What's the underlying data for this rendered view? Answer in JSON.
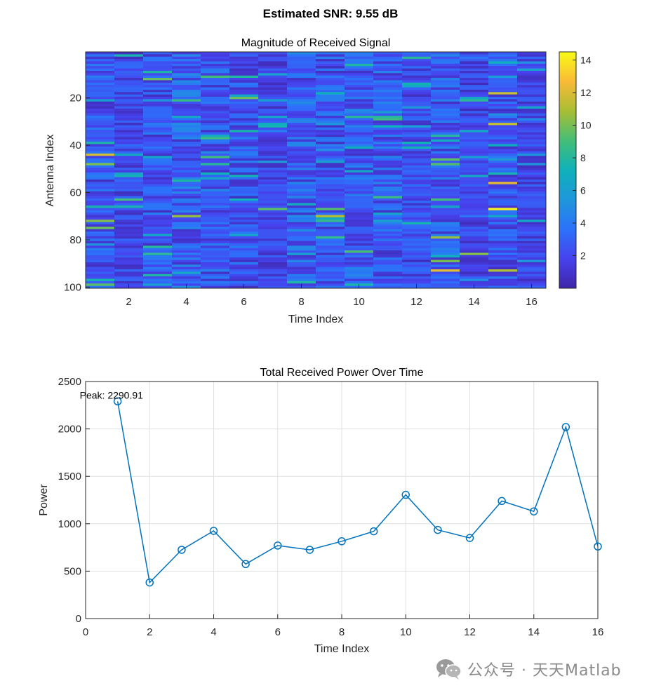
{
  "figure": {
    "suptitle": "Estimated SNR: 9.55 dB"
  },
  "chart_data": [
    {
      "type": "heatmap",
      "title": "Magnitude of Received Signal",
      "xlabel": "Time Index",
      "ylabel": "Antenna Index",
      "x_range": [
        1,
        16
      ],
      "y_range": [
        1,
        100
      ],
      "x_ticks": [
        2,
        4,
        6,
        8,
        10,
        12,
        14,
        16
      ],
      "y_ticks": [
        20,
        40,
        60,
        80,
        100
      ],
      "y_reversed": true,
      "colormap": "parula",
      "colorbar": {
        "range": [
          0,
          14.5
        ],
        "ticks": [
          2,
          4,
          6,
          8,
          10,
          12,
          14
        ]
      },
      "highlights": [
        {
          "time": 15,
          "antenna": 67,
          "value": 14.2
        },
        {
          "time": 15,
          "antenna": 56,
          "value": 12.2
        },
        {
          "time": 1,
          "antenna": 44,
          "value": 11.8
        },
        {
          "time": 15,
          "antenna": 18,
          "value": 11.5
        },
        {
          "time": 13,
          "antenna": 93,
          "value": 12.0
        },
        {
          "time": 9,
          "antenna": 70,
          "value": 11.0
        },
        {
          "time": 15,
          "antenna": 31,
          "value": 11.5
        },
        {
          "time": 4,
          "antenna": 70,
          "value": 10.5
        },
        {
          "time": 13,
          "antenna": 79,
          "value": 10.5
        },
        {
          "time": 1,
          "antenna": 72,
          "value": 10.2
        },
        {
          "time": 15,
          "antenna": 93,
          "value": 11.0
        },
        {
          "time": 14,
          "antenna": 86,
          "value": 10.2
        },
        {
          "time": 1,
          "antenna": 48,
          "value": 10.0
        },
        {
          "time": 1,
          "antenna": 75,
          "value": 9.8
        },
        {
          "time": 1,
          "antenna": 99,
          "value": 9.5
        },
        {
          "time": 2,
          "antenna": 63,
          "value": 9.0
        },
        {
          "time": 7,
          "antenna": 67,
          "value": 9.5
        },
        {
          "time": 13,
          "antenna": 89,
          "value": 10.0
        }
      ]
    },
    {
      "type": "line",
      "title": "Total Received Power Over Time",
      "xlabel": "Time Index",
      "ylabel": "Power",
      "xlim": [
        0,
        16
      ],
      "ylim": [
        0,
        2500
      ],
      "x_ticks": [
        0,
        2,
        4,
        6,
        8,
        10,
        12,
        14,
        16
      ],
      "y_ticks": [
        0,
        500,
        1000,
        1500,
        2000,
        2500
      ],
      "grid": true,
      "marker": "circle",
      "color": "#0072BD",
      "series": [
        {
          "name": "Total Power",
          "x": [
            1,
            2,
            3,
            4,
            5,
            6,
            7,
            8,
            9,
            10,
            11,
            12,
            13,
            14,
            15,
            16
          ],
          "values": [
            2290.91,
            380,
            725,
            925,
            575,
            770,
            725,
            815,
            920,
            1305,
            935,
            850,
            1240,
            1130,
            2020,
            760
          ]
        }
      ],
      "annotation": {
        "text": "Peak: 2290.91",
        "x": 1,
        "y": 2290.91
      }
    }
  ],
  "watermark": {
    "text": "公众号 · 天天Matlab"
  }
}
